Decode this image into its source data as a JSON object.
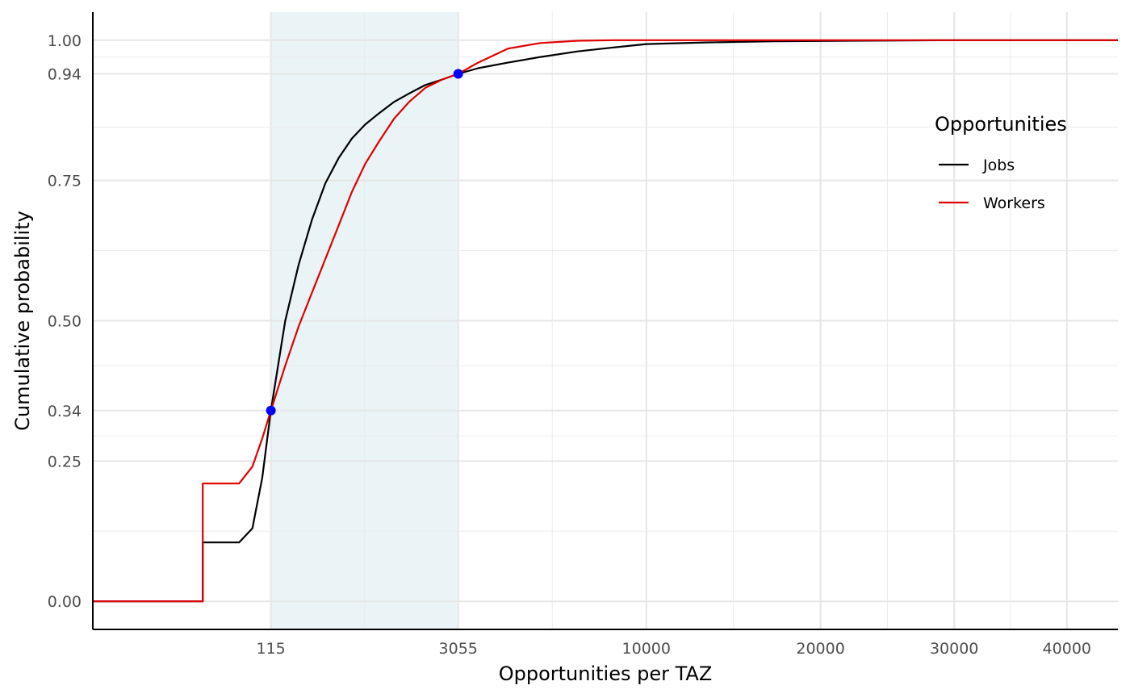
{
  "chart_data": {
    "type": "line",
    "title": "",
    "xlabel": "Opportunities per TAZ",
    "ylabel": "Cumulative probability",
    "x_scale": "sqrt",
    "xlim": [
      -1000,
      45000
    ],
    "ylim": [
      -0.05,
      1.05
    ],
    "x_ticks": [
      115,
      3055,
      10000,
      20000,
      30000,
      40000
    ],
    "x_tick_labels": [
      "115",
      "3055",
      "10000",
      "20000",
      "30000",
      "40000"
    ],
    "y_ticks": [
      0,
      0.25,
      0.34,
      0.5,
      0.75,
      0.94,
      1.0
    ],
    "y_tick_labels": [
      "0.00",
      "0.25",
      "0.34",
      "0.50",
      "0.75",
      "0.94",
      "1.00"
    ],
    "grid": true,
    "shaded_band": {
      "x_from": 115,
      "x_to": 3055,
      "color": "#eaf4f7"
    },
    "legend": {
      "title": "Opportunities",
      "position": "right",
      "entries": [
        {
          "label": "Jobs",
          "color": "#000000"
        },
        {
          "label": "Workers",
          "color": "#e00000"
        }
      ]
    },
    "series": [
      {
        "name": "Jobs",
        "color": "#000000",
        "x": [
          -1000,
          -30,
          -30,
          10,
          40,
          75,
          115,
          200,
          300,
          420,
          560,
          720,
          900,
          1100,
          1330,
          1600,
          1900,
          2250,
          2650,
          3055,
          3600,
          4500,
          5600,
          7000,
          8500,
          10000,
          13000,
          17000,
          22000,
          30000,
          45000
        ],
        "y": [
          0,
          0,
          0.105,
          0.105,
          0.13,
          0.22,
          0.34,
          0.5,
          0.6,
          0.68,
          0.745,
          0.79,
          0.825,
          0.85,
          0.87,
          0.89,
          0.905,
          0.92,
          0.93,
          0.94,
          0.95,
          0.96,
          0.97,
          0.98,
          0.987,
          0.993,
          0.996,
          0.998,
          0.999,
          1.0,
          1.0
        ]
      },
      {
        "name": "Workers",
        "color": "#e00000",
        "x": [
          -1000,
          -30,
          -30,
          10,
          40,
          75,
          115,
          200,
          300,
          420,
          560,
          720,
          900,
          1100,
          1330,
          1600,
          1900,
          2250,
          2650,
          3055,
          3600,
          4500,
          5600,
          7000,
          8500,
          10000,
          45000
        ],
        "y": [
          0,
          0,
          0.21,
          0.21,
          0.24,
          0.29,
          0.34,
          0.42,
          0.49,
          0.55,
          0.61,
          0.67,
          0.73,
          0.78,
          0.82,
          0.86,
          0.89,
          0.915,
          0.93,
          0.94,
          0.96,
          0.985,
          0.995,
          0.999,
          1.0,
          1.0,
          1.0
        ]
      }
    ],
    "markers": [
      {
        "x": 115,
        "y": 0.34,
        "color": "#0000ff"
      },
      {
        "x": 3055,
        "y": 0.94,
        "color": "#0000ff"
      }
    ]
  }
}
